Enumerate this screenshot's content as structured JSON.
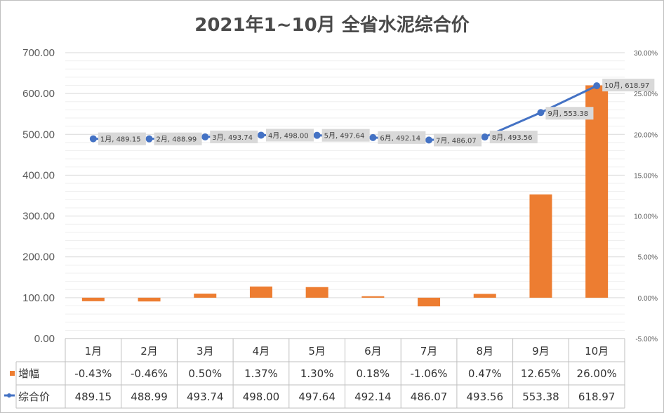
{
  "chart_data": {
    "type": "bar+line",
    "title": "2021年1~10月 全省水泥综合价",
    "categories": [
      "1月",
      "2月",
      "3月",
      "4月",
      "5月",
      "6月",
      "7月",
      "8月",
      "9月",
      "10月"
    ],
    "series": [
      {
        "name": "增幅",
        "type": "bar",
        "axis": "right",
        "color": "#ed7d31",
        "values": [
          -0.43,
          -0.46,
          0.5,
          1.37,
          1.3,
          0.18,
          -1.06,
          0.47,
          12.65,
          26.0
        ],
        "labels": [
          "-0.43%",
          "-0.46%",
          "0.50%",
          "1.37%",
          "1.30%",
          "0.18%",
          "-1.06%",
          "0.47%",
          "12.65%",
          "26.00%"
        ]
      },
      {
        "name": "综合价",
        "type": "line",
        "axis": "left",
        "color": "#4472c4",
        "values": [
          489.15,
          488.99,
          493.74,
          498.0,
          497.64,
          492.14,
          486.07,
          493.56,
          553.38,
          618.97
        ],
        "labels": [
          "489.15",
          "488.99",
          "493.74",
          "498.00",
          "497.64",
          "492.14",
          "486.07",
          "493.56",
          "553.38",
          "618.97"
        ]
      }
    ],
    "left_axis": {
      "min": 0,
      "max": 700,
      "ticks": [
        "0.00",
        "100.00",
        "200.00",
        "300.00",
        "400.00",
        "500.00",
        "600.00",
        "700.00"
      ]
    },
    "right_axis": {
      "min": -5,
      "max": 30,
      "ticks": [
        "-5.00%",
        "0.00%",
        "5.00%",
        "10.00%",
        "15.00%",
        "20.00%",
        "25.00%",
        "30.00%"
      ]
    },
    "grid": true,
    "data_table": true
  }
}
